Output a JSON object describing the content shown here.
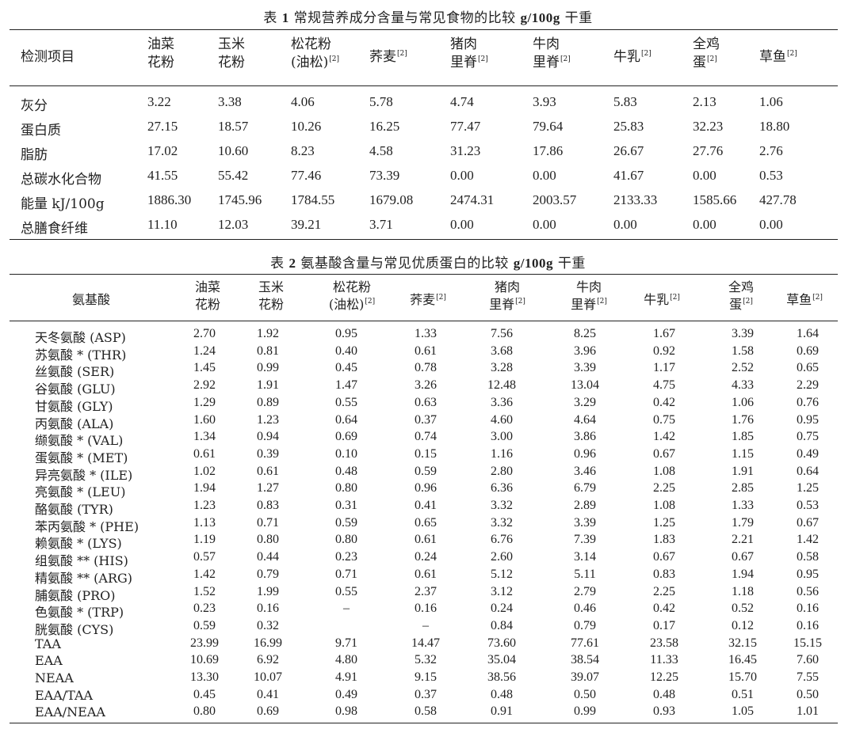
{
  "table1": {
    "caption_prefix": "表",
    "caption_num": "1",
    "caption_text": "常规营养成分含量与常见食物的比较",
    "caption_unit": "g/100g",
    "caption_suffix": "干重",
    "headers": [
      {
        "lines": [
          "检测项目"
        ],
        "ref": ""
      },
      {
        "lines": [
          "油菜",
          "花粉"
        ],
        "ref": ""
      },
      {
        "lines": [
          "玉米",
          "花粉"
        ],
        "ref": ""
      },
      {
        "lines": [
          "松花粉",
          "(油松)"
        ],
        "ref": "[2]"
      },
      {
        "lines": [
          "荞麦"
        ],
        "ref": "[2]"
      },
      {
        "lines": [
          "猪肉",
          "里脊"
        ],
        "ref": "[2]"
      },
      {
        "lines": [
          "牛肉",
          "里脊"
        ],
        "ref": "[2]"
      },
      {
        "lines": [
          "牛乳"
        ],
        "ref": "[2]"
      },
      {
        "lines": [
          "全鸡",
          "蛋"
        ],
        "ref": "[2]"
      },
      {
        "lines": [
          "草鱼"
        ],
        "ref": "[2]"
      }
    ],
    "rows": [
      [
        "灰分",
        "3.22",
        "3.38",
        "4.06",
        "5.78",
        "4.74",
        "3.93",
        "5.83",
        "2.13",
        "1.06"
      ],
      [
        "蛋白质",
        "27.15",
        "18.57",
        "10.26",
        "16.25",
        "77.47",
        "79.64",
        "25.83",
        "32.23",
        "18.80"
      ],
      [
        "脂肪",
        "17.02",
        "10.60",
        "8.23",
        "4.58",
        "31.23",
        "17.86",
        "26.67",
        "27.76",
        "2.76"
      ],
      [
        "总碳水化合物",
        "41.55",
        "55.42",
        "77.46",
        "73.39",
        "0.00",
        "0.00",
        "41.67",
        "0.00",
        "0.53"
      ],
      [
        "能量 kJ/100g",
        "1886.30",
        "1745.96",
        "1784.55",
        "1679.08",
        "2474.31",
        "2003.57",
        "2133.33",
        "1585.66",
        "427.78"
      ],
      [
        "总膳食纤维",
        "11.10",
        "12.03",
        "39.21",
        "3.71",
        "0.00",
        "0.00",
        "0.00",
        "0.00",
        "0.00"
      ]
    ]
  },
  "table2": {
    "caption_prefix": "表",
    "caption_num": "2",
    "caption_text": "氨基酸含量与常见优质蛋白的比较",
    "caption_unit": "g/100g",
    "caption_suffix": "干重",
    "headers": [
      {
        "lines": [
          "氨基酸"
        ],
        "ref": ""
      },
      {
        "lines": [
          "油菜",
          "花粉"
        ],
        "ref": ""
      },
      {
        "lines": [
          "玉米",
          "花粉"
        ],
        "ref": ""
      },
      {
        "lines": [
          "松花粉",
          "(油松)"
        ],
        "ref": "[2]"
      },
      {
        "lines": [
          "荞麦"
        ],
        "ref": "[2]"
      },
      {
        "lines": [
          "猪肉",
          "里脊"
        ],
        "ref": "[2]"
      },
      {
        "lines": [
          "牛肉",
          "里脊"
        ],
        "ref": "[2]"
      },
      {
        "lines": [
          "牛乳"
        ],
        "ref": "[2]"
      },
      {
        "lines": [
          "全鸡",
          "蛋"
        ],
        "ref": "[2]"
      },
      {
        "lines": [
          "草鱼"
        ],
        "ref": "[2]"
      }
    ],
    "rows": [
      [
        "天冬氨酸 (ASP)",
        "2.70",
        "1.92",
        "0.95",
        "1.33",
        "7.56",
        "8.25",
        "1.67",
        "3.39",
        "1.64"
      ],
      [
        "苏氨酸 * (THR)",
        "1.24",
        "0.81",
        "0.40",
        "0.61",
        "3.68",
        "3.96",
        "0.92",
        "1.58",
        "0.69"
      ],
      [
        "丝氨酸 (SER)",
        "1.45",
        "0.99",
        "0.45",
        "0.78",
        "3.28",
        "3.39",
        "1.17",
        "2.52",
        "0.65"
      ],
      [
        "谷氨酸 (GLU)",
        "2.92",
        "1.91",
        "1.47",
        "3.26",
        "12.48",
        "13.04",
        "4.75",
        "4.33",
        "2.29"
      ],
      [
        "甘氨酸 (GLY)",
        "1.29",
        "0.89",
        "0.55",
        "0.63",
        "3.36",
        "3.29",
        "0.42",
        "1.06",
        "0.76"
      ],
      [
        "丙氨酸 (ALA)",
        "1.60",
        "1.23",
        "0.64",
        "0.37",
        "4.60",
        "4.64",
        "0.75",
        "1.76",
        "0.95"
      ],
      [
        "缬氨酸 * (VAL)",
        "1.34",
        "0.94",
        "0.69",
        "0.74",
        "3.00",
        "3.86",
        "1.42",
        "1.85",
        "0.75"
      ],
      [
        "蛋氨酸 * (MET)",
        "0.61",
        "0.39",
        "0.10",
        "0.15",
        "1.16",
        "0.96",
        "0.67",
        "1.15",
        "0.49"
      ],
      [
        "异亮氨酸 * (ILE)",
        "1.02",
        "0.61",
        "0.48",
        "0.59",
        "2.80",
        "3.46",
        "1.08",
        "1.91",
        "0.64"
      ],
      [
        "亮氨酸 * (LEU)",
        "1.94",
        "1.27",
        "0.80",
        "0.96",
        "6.36",
        "6.79",
        "2.25",
        "2.85",
        "1.25"
      ],
      [
        "酪氨酸 (TYR)",
        "1.23",
        "0.83",
        "0.31",
        "0.41",
        "3.32",
        "2.89",
        "1.08",
        "1.33",
        "0.53"
      ],
      [
        "苯丙氨酸 * (PHE)",
        "1.13",
        "0.71",
        "0.59",
        "0.65",
        "3.32",
        "3.39",
        "1.25",
        "1.79",
        "0.67"
      ],
      [
        "赖氨酸 * (LYS)",
        "1.19",
        "0.80",
        "0.80",
        "0.61",
        "6.76",
        "7.39",
        "1.83",
        "2.21",
        "1.42"
      ],
      [
        "组氨酸 ** (HIS)",
        "0.57",
        "0.44",
        "0.23",
        "0.24",
        "2.60",
        "3.14",
        "0.67",
        "0.67",
        "0.58"
      ],
      [
        "精氨酸 ** (ARG)",
        "1.42",
        "0.79",
        "0.71",
        "0.61",
        "5.12",
        "5.11",
        "0.83",
        "1.94",
        "0.95"
      ],
      [
        "脯氨酸 (PRO)",
        "1.52",
        "1.99",
        "0.55",
        "2.37",
        "3.12",
        "2.79",
        "2.25",
        "1.18",
        "0.56"
      ],
      [
        "色氨酸 * (TRP)",
        "0.23",
        "0.16",
        "–",
        "0.16",
        "0.24",
        "0.46",
        "0.42",
        "0.52",
        "0.16"
      ],
      [
        "胱氨酸 (CYS)",
        "0.59",
        "0.32",
        "",
        "–",
        "0.84",
        "0.79",
        "0.17",
        "0.12",
        "0.16"
      ],
      [
        "TAA",
        "23.99",
        "16.99",
        "9.71",
        "14.47",
        "73.60",
        "77.61",
        "23.58",
        "32.15",
        "15.15"
      ],
      [
        "EAA",
        "10.69",
        "6.92",
        "4.80",
        "5.32",
        "35.04",
        "38.54",
        "11.33",
        "16.45",
        "7.60"
      ],
      [
        "NEAA",
        "13.30",
        "10.07",
        "4.91",
        "9.15",
        "38.56",
        "39.07",
        "12.25",
        "15.70",
        "7.55"
      ],
      [
        "EAA/TAA",
        "0.45",
        "0.41",
        "0.49",
        "0.37",
        "0.48",
        "0.50",
        "0.48",
        "0.51",
        "0.50"
      ],
      [
        "EAA/NEAA",
        "0.80",
        "0.69",
        "0.98",
        "0.58",
        "0.91",
        "0.99",
        "0.93",
        "1.05",
        "1.01"
      ]
    ]
  }
}
